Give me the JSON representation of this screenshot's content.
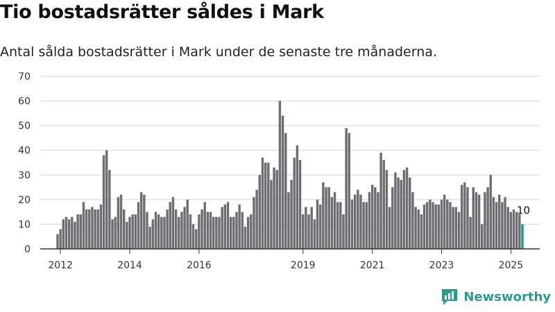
{
  "header": {
    "title": "Tio bostadsrätter såldes i Mark",
    "subtitle": "Antal sålda bostadsrätter i Mark under de senaste tre månaderna."
  },
  "brand": {
    "name": "Newsworthy",
    "logo_icon": "bar-chart-logo-icon",
    "color": "#2a9d8f"
  },
  "colors": {
    "bar": "#6d6d72",
    "highlight": "#1a9a8c",
    "grid": "#d4d4d4",
    "axis": "#333333"
  },
  "chart_data": {
    "type": "bar",
    "title": "Tio bostadsrätter såldes i Mark",
    "subtitle": "Antal sålda bostadsrätter i Mark under de senaste tre månaderna.",
    "xlabel": "",
    "ylabel": "",
    "ylim": [
      0,
      70
    ],
    "yticks": [
      0,
      10,
      20,
      30,
      40,
      50,
      60,
      70
    ],
    "xlim": [
      "2011-06",
      "2025-11"
    ],
    "xticks": [
      {
        "label": "2012",
        "date": "2012-01"
      },
      {
        "label": "2014",
        "date": "2014-01"
      },
      {
        "label": "2016",
        "date": "2016-01"
      },
      {
        "label": "2019",
        "date": "2019-01"
      },
      {
        "label": "2021",
        "date": "2021-01"
      },
      {
        "label": "2023",
        "date": "2023-01"
      },
      {
        "label": "2025",
        "date": "2025-01"
      }
    ],
    "grid": true,
    "bar_frequency": "monthly",
    "start_month": "2011-12",
    "values": [
      6,
      8,
      12,
      13,
      12,
      13,
      11,
      14,
      14,
      19,
      16,
      16,
      17,
      16,
      16,
      18,
      38,
      40,
      32,
      12,
      13,
      21,
      22,
      16,
      11,
      13,
      14,
      14,
      19,
      23,
      22,
      15,
      9,
      12,
      15,
      14,
      13,
      13,
      16,
      19,
      21,
      16,
      13,
      15,
      17,
      20,
      14,
      10,
      8,
      14,
      16,
      19,
      15,
      15,
      13,
      13,
      13,
      17,
      18,
      19,
      13,
      13,
      15,
      18,
      15,
      9,
      13,
      14,
      21,
      24,
      30,
      37,
      35,
      35,
      28,
      33,
      32,
      60,
      54,
      47,
      23,
      28,
      37,
      42,
      36,
      14,
      17,
      14,
      17,
      12,
      20,
      18,
      27,
      25,
      25,
      21,
      23,
      19,
      19,
      14,
      49,
      47,
      20,
      22,
      24,
      22,
      19,
      19,
      23,
      26,
      25,
      23,
      39,
      36,
      32,
      17,
      25,
      31,
      29,
      28,
      32,
      33,
      29,
      23,
      17,
      16,
      14,
      18,
      19,
      20,
      19,
      18,
      18,
      20,
      22,
      20,
      19,
      17,
      17,
      15,
      26,
      27,
      25,
      13,
      25,
      23,
      22,
      10,
      23,
      25,
      30,
      21,
      19,
      22,
      19,
      21,
      17,
      15,
      16,
      15,
      14,
      10
    ],
    "highlight_last": true,
    "annotations": [
      {
        "text": "10",
        "target": "last"
      }
    ]
  }
}
